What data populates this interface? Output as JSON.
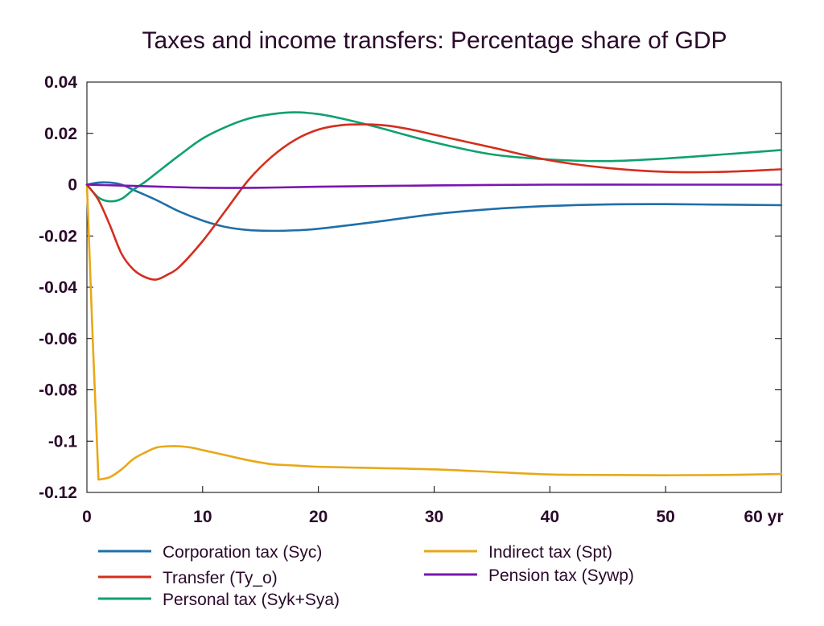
{
  "chart_data": {
    "type": "line",
    "title": "Taxes and income transfers: Percentage share of GDP",
    "xlabel": "",
    "ylabel": "",
    "xlim": [
      0,
      60
    ],
    "ylim": [
      -0.12,
      0.04
    ],
    "x_ticks": [
      0,
      10,
      20,
      30,
      40,
      50,
      60
    ],
    "x_tick_labels": [
      "0",
      "10",
      "20",
      "30",
      "40",
      "50",
      "60 yr"
    ],
    "y_ticks": [
      0.04,
      0.02,
      0,
      -0.02,
      -0.04,
      -0.06,
      -0.08,
      -0.1,
      -0.12
    ],
    "y_tick_labels": [
      "0.04",
      "0.02",
      "0",
      "-0.02",
      "-0.04",
      "-0.06",
      "-0.08",
      "-0.1",
      "-0.12"
    ],
    "grid": false,
    "legend_position": "bottom",
    "series": [
      {
        "name": "Corporation tax (Syc)",
        "color": "#1f6fa8",
        "x": [
          0,
          1,
          2,
          3,
          4,
          6,
          8,
          10,
          12,
          14,
          16,
          18,
          20,
          25,
          30,
          35,
          40,
          45,
          50,
          55,
          60
        ],
        "y": [
          0,
          0.0008,
          0.0008,
          0.0,
          -0.002,
          -0.006,
          -0.0105,
          -0.014,
          -0.0165,
          -0.0177,
          -0.018,
          -0.0178,
          -0.0172,
          -0.0145,
          -0.0115,
          -0.0095,
          -0.0083,
          -0.0077,
          -0.0076,
          -0.0078,
          -0.008
        ]
      },
      {
        "name": "Transfer (Ty_o)",
        "color": "#d42e1e",
        "x": [
          0,
          1,
          2,
          3,
          4,
          5,
          6,
          7,
          8,
          10,
          12,
          14,
          16,
          18,
          20,
          22,
          24,
          26,
          28,
          30,
          35,
          40,
          45,
          50,
          55,
          60
        ],
        "y": [
          0,
          -0.006,
          -0.016,
          -0.027,
          -0.033,
          -0.036,
          -0.037,
          -0.035,
          -0.032,
          -0.022,
          -0.01,
          0.002,
          0.011,
          0.0175,
          0.0215,
          0.0232,
          0.0235,
          0.023,
          0.0215,
          0.0195,
          0.0145,
          0.0095,
          0.0065,
          0.005,
          0.005,
          0.006
        ]
      },
      {
        "name": "Personal tax (Syk+Sya)",
        "color": "#10a070",
        "x": [
          0,
          1,
          2,
          3,
          4,
          5,
          6,
          8,
          10,
          12,
          14,
          16,
          18,
          20,
          22,
          25,
          30,
          35,
          40,
          45,
          50,
          55,
          60
        ],
        "y": [
          0,
          -0.005,
          -0.0065,
          -0.0055,
          -0.002,
          0.001,
          0.0045,
          0.0115,
          0.018,
          0.0225,
          0.0258,
          0.0275,
          0.0282,
          0.0275,
          0.0258,
          0.0225,
          0.0165,
          0.0118,
          0.0098,
          0.0092,
          0.0102,
          0.0118,
          0.0135
        ]
      },
      {
        "name": "Indirect tax (Spt)",
        "color": "#e8a818",
        "x": [
          0,
          0.5,
          1,
          2,
          3,
          4,
          5,
          6,
          7,
          8,
          9,
          10,
          12,
          14,
          16,
          18,
          20,
          25,
          30,
          35,
          40,
          45,
          50,
          55,
          60
        ],
        "y": [
          0,
          -0.06,
          -0.115,
          -0.114,
          -0.111,
          -0.107,
          -0.1045,
          -0.1025,
          -0.102,
          -0.102,
          -0.1025,
          -0.1035,
          -0.1055,
          -0.1075,
          -0.109,
          -0.1095,
          -0.11,
          -0.1105,
          -0.111,
          -0.112,
          -0.113,
          -0.1132,
          -0.1133,
          -0.1132,
          -0.1128
        ]
      },
      {
        "name": "Pension tax (Sywp)",
        "color": "#7a16b0",
        "x": [
          0,
          5,
          10,
          15,
          20,
          30,
          40,
          50,
          60
        ],
        "y": [
          0,
          -0.0006,
          -0.0012,
          -0.0012,
          -0.0008,
          -0.0003,
          0.0,
          0.0,
          0.0
        ]
      }
    ],
    "legend_order": [
      0,
      3,
      1,
      4,
      2
    ]
  }
}
